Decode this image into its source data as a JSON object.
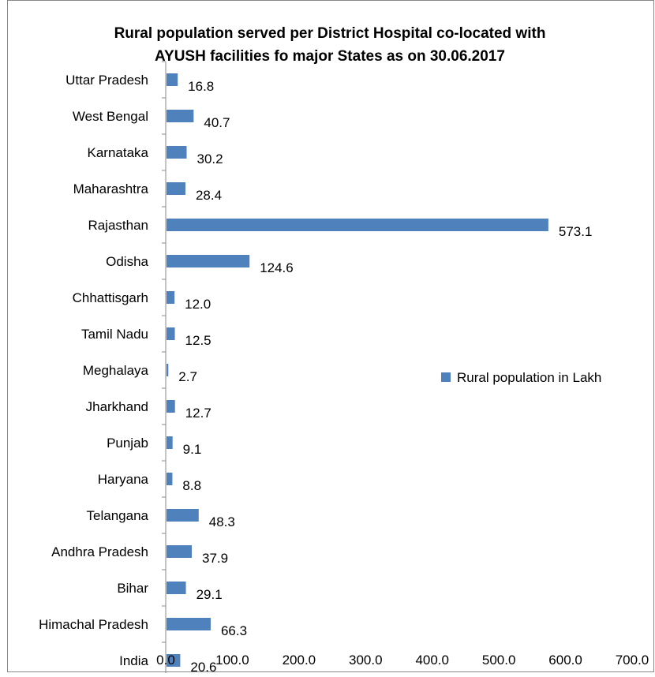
{
  "chart_data": {
    "type": "bar",
    "orientation": "horizontal",
    "title_line1": "Rural population served per District Hospital co-located with",
    "title_line2": "AYUSH facilities fo major States as on 30.06.2017",
    "categories": [
      "Uttar Pradesh",
      "West Bengal",
      "Karnataka",
      "Maharashtra",
      "Rajasthan",
      "Odisha",
      "Chhattisgarh",
      "Tamil Nadu",
      "Meghalaya",
      "Jharkhand",
      "Punjab",
      "Haryana",
      "Telangana",
      "Andhra Pradesh",
      "Bihar",
      "Himachal Pradesh",
      "India"
    ],
    "series": [
      {
        "name": "Rural population in Lakh",
        "values": [
          16.8,
          40.7,
          30.2,
          28.4,
          573.1,
          124.6,
          12.0,
          12.5,
          2.7,
          12.7,
          9.1,
          8.8,
          48.3,
          37.9,
          29.1,
          66.3,
          20.6
        ],
        "labels": [
          "16.8",
          "40.7",
          "30.2",
          "28.4",
          "573.1",
          "124.6",
          "12.0",
          "12.5",
          "2.7",
          "12.7",
          "9.1",
          "8.8",
          "48.3",
          "37.9",
          "29.1",
          "66.3",
          "20.6"
        ],
        "color": "#4F81BD"
      }
    ],
    "xlim": [
      0,
      700
    ],
    "x_ticks": [
      "0.0",
      "100.0",
      "200.0",
      "300.0",
      "400.0",
      "500.0",
      "600.0",
      "700.0"
    ],
    "legend_position": "right",
    "grid": false
  }
}
